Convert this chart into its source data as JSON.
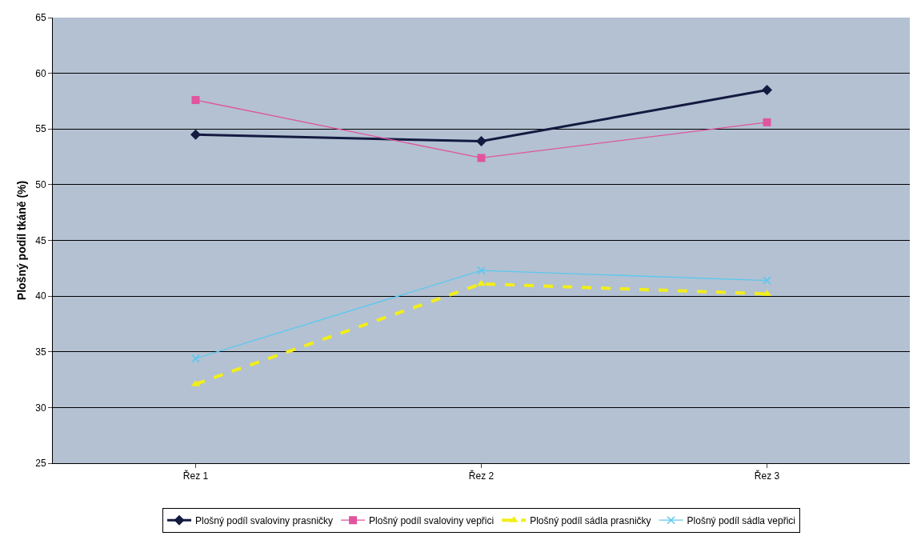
{
  "chart_data": {
    "type": "line",
    "ylabel": "Plošný podíl tkáně (%)",
    "categories": [
      "Řez 1",
      "Řez 2",
      "Řez 3"
    ],
    "ylim": [
      25,
      65
    ],
    "yticks": [
      25,
      30,
      35,
      40,
      45,
      50,
      55,
      60,
      65
    ],
    "grid": "y",
    "legend": "bottom",
    "series": [
      {
        "name": "Plošný podíl svaloviny prasničky",
        "color": "#141a40",
        "values": [
          54.5,
          53.9,
          58.5
        ],
        "marker": "diamond",
        "line_style": "solid"
      },
      {
        "name": "Plošný podíl svaloviny vepřici",
        "color": "#e0559e",
        "values": [
          57.6,
          52.4,
          55.6
        ],
        "marker": "square",
        "line_style": "solid"
      },
      {
        "name": "Plošný podíl sádla prasničky",
        "color": "#f2ee1a",
        "values": [
          32.1,
          41.1,
          40.2
        ],
        "marker": "triangle",
        "line_style": "dashed"
      },
      {
        "name": "Plošný podíl sádla vepřici",
        "color": "#5cc8ee",
        "values": [
          34.4,
          42.3,
          41.4
        ],
        "marker": "cross",
        "line_style": "solid"
      }
    ]
  }
}
